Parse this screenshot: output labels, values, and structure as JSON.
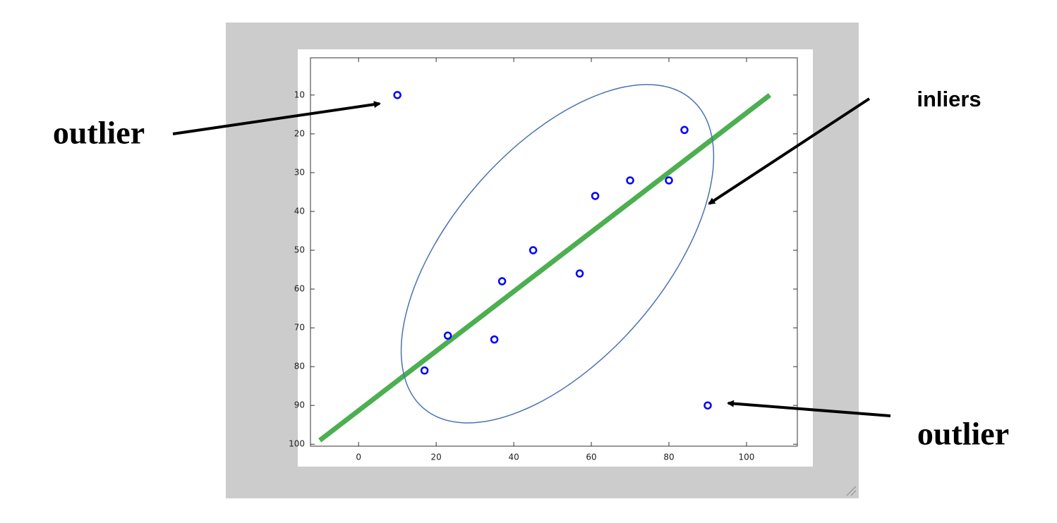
{
  "chart_data": {
    "type": "scatter",
    "xlim": [
      -12.4,
      113.1
    ],
    "ylim": [
      0.4,
      100.5
    ],
    "y_reversed": true,
    "xticks": [
      0,
      20,
      40,
      60,
      80,
      100
    ],
    "yticks": [
      10,
      20,
      30,
      40,
      50,
      60,
      70,
      80,
      90,
      100
    ],
    "points": {
      "color": "#0000ff",
      "x": [
        10,
        17,
        23,
        35,
        37,
        45,
        57,
        61,
        70,
        80,
        84,
        90
      ],
      "y": [
        10,
        81,
        72,
        73,
        58,
        50,
        56,
        36,
        32,
        32,
        19,
        90
      ]
    },
    "fit_line": {
      "color": "#4caf50",
      "x": [
        -10,
        106
      ],
      "y": [
        99,
        10
      ]
    },
    "annotations": [
      "outlier",
      "inliers",
      "outlier"
    ]
  }
}
